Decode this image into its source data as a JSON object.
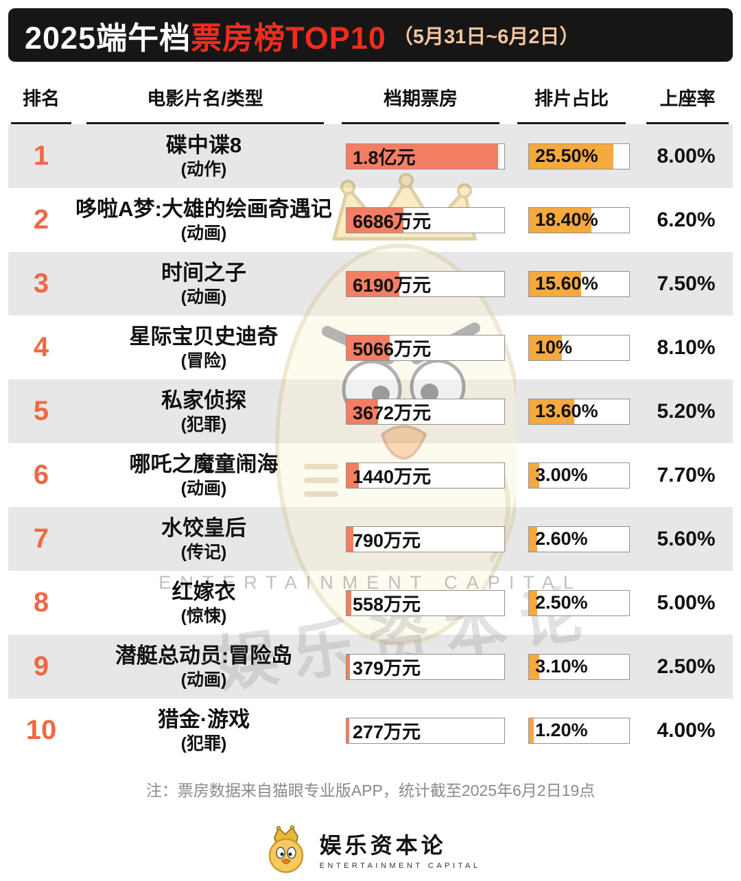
{
  "header": {
    "title_main": "2025端午档",
    "title_accent": "票房榜TOP10",
    "date_range": "（5月31日~6月2日）"
  },
  "table": {
    "columns": [
      "排名",
      "电影片名/类型",
      "档期票房",
      "排片占比",
      "上座率"
    ],
    "rows": [
      {
        "rank": "1",
        "title": "碟中谍8",
        "genre": "(动作)",
        "box_office": "1.8亿元",
        "box_fill_pct": 96,
        "ratio": "25.50%",
        "ratio_fill_pct": 84,
        "attendance": "8.00%"
      },
      {
        "rank": "2",
        "title": "哆啦A梦:大雄的绘画奇遇记",
        "genre": "(动画)",
        "box_office": "6686万元",
        "box_fill_pct": 36,
        "ratio": "18.40%",
        "ratio_fill_pct": 62,
        "attendance": "6.20%"
      },
      {
        "rank": "3",
        "title": "时间之子",
        "genre": "(动画)",
        "box_office": "6190万元",
        "box_fill_pct": 33.5,
        "ratio": "15.60%",
        "ratio_fill_pct": 52,
        "attendance": "7.50%"
      },
      {
        "rank": "4",
        "title": "星际宝贝史迪奇",
        "genre": "(冒险)",
        "box_office": "5066万元",
        "box_fill_pct": 27.5,
        "ratio": "10%",
        "ratio_fill_pct": 33,
        "attendance": "8.10%"
      },
      {
        "rank": "5",
        "title": "私家侦探",
        "genre": "(犯罪)",
        "box_office": "3672万元",
        "box_fill_pct": 20,
        "ratio": "13.60%",
        "ratio_fill_pct": 45,
        "attendance": "5.20%"
      },
      {
        "rank": "6",
        "title": "哪吒之魔童闹海",
        "genre": "(动画)",
        "box_office": "1440万元",
        "box_fill_pct": 8,
        "ratio": "3.00%",
        "ratio_fill_pct": 10,
        "attendance": "7.70%"
      },
      {
        "rank": "7",
        "title": "水饺皇后",
        "genre": "(传记)",
        "box_office": "790万元",
        "box_fill_pct": 4.5,
        "ratio": "2.60%",
        "ratio_fill_pct": 8.5,
        "attendance": "5.60%"
      },
      {
        "rank": "8",
        "title": "红嫁衣",
        "genre": "(惊悚)",
        "box_office": "558万元",
        "box_fill_pct": 3.2,
        "ratio": "2.50%",
        "ratio_fill_pct": 8.2,
        "attendance": "5.00%"
      },
      {
        "rank": "9",
        "title": "潜艇总动员:冒险岛",
        "genre": "(动画)",
        "box_office": "379万元",
        "box_fill_pct": 2.3,
        "ratio": "3.10%",
        "ratio_fill_pct": 10.2,
        "attendance": "2.50%"
      },
      {
        "rank": "10",
        "title": "猎金·游戏",
        "genre": "(犯罪)",
        "box_office": "277万元",
        "box_fill_pct": 1.7,
        "ratio": "1.20%",
        "ratio_fill_pct": 4.5,
        "attendance": "4.00%"
      }
    ]
  },
  "note": "注：票房数据来自猫眼专业版APP，统计截至2025年6月2日19点",
  "watermark": {
    "text_en": "ENTERTAINMENT CAPITAL",
    "text_cn": "娱乐资本论"
  },
  "footer": {
    "brand": "娱乐资本论",
    "brand_sub": "ENTERTAINMENT CAPITAL"
  },
  "colors": {
    "header_bg": "#161616",
    "title_accent": "#f32c1e",
    "date_text": "#f6c59d",
    "rank": "#f26744",
    "row_alt_bg": "#e7e7e7",
    "box_bar_fill": "#f47e63",
    "ratio_bar_fill": "#f6a93e"
  },
  "chart_data": {
    "type": "table",
    "title": "2025端午档票房榜TOP10",
    "subtitle": "5月31日~6月2日",
    "columns": [
      "排名",
      "电影片名/类型",
      "档期票房",
      "排片占比",
      "上座率"
    ],
    "rows": [
      {
        "rank": 1,
        "title": "碟中谍8",
        "genre": "动作",
        "box_office": "1.8亿元",
        "box_office_wan": 18000,
        "screening_share_pct": 25.5,
        "attendance_pct": 8.0
      },
      {
        "rank": 2,
        "title": "哆啦A梦:大雄的绘画奇遇记",
        "genre": "动画",
        "box_office": "6686万元",
        "box_office_wan": 6686,
        "screening_share_pct": 18.4,
        "attendance_pct": 6.2
      },
      {
        "rank": 3,
        "title": "时间之子",
        "genre": "动画",
        "box_office": "6190万元",
        "box_office_wan": 6190,
        "screening_share_pct": 15.6,
        "attendance_pct": 7.5
      },
      {
        "rank": 4,
        "title": "星际宝贝史迪奇",
        "genre": "冒险",
        "box_office": "5066万元",
        "box_office_wan": 5066,
        "screening_share_pct": 10.0,
        "attendance_pct": 8.1
      },
      {
        "rank": 5,
        "title": "私家侦探",
        "genre": "犯罪",
        "box_office": "3672万元",
        "box_office_wan": 3672,
        "screening_share_pct": 13.6,
        "attendance_pct": 5.2
      },
      {
        "rank": 6,
        "title": "哪吒之魔童闹海",
        "genre": "动画",
        "box_office": "1440万元",
        "box_office_wan": 1440,
        "screening_share_pct": 3.0,
        "attendance_pct": 7.7
      },
      {
        "rank": 7,
        "title": "水饺皇后",
        "genre": "传记",
        "box_office": "790万元",
        "box_office_wan": 790,
        "screening_share_pct": 2.6,
        "attendance_pct": 5.6
      },
      {
        "rank": 8,
        "title": "红嫁衣",
        "genre": "惊悚",
        "box_office": "558万元",
        "box_office_wan": 558,
        "screening_share_pct": 2.5,
        "attendance_pct": 5.0
      },
      {
        "rank": 9,
        "title": "潜艇总动员:冒险岛",
        "genre": "动画",
        "box_office": "379万元",
        "box_office_wan": 379,
        "screening_share_pct": 3.1,
        "attendance_pct": 2.5
      },
      {
        "rank": 10,
        "title": "猎金·游戏",
        "genre": "犯罪",
        "box_office": "277万元",
        "box_office_wan": 277,
        "screening_share_pct": 1.2,
        "attendance_pct": 4.0
      }
    ]
  }
}
